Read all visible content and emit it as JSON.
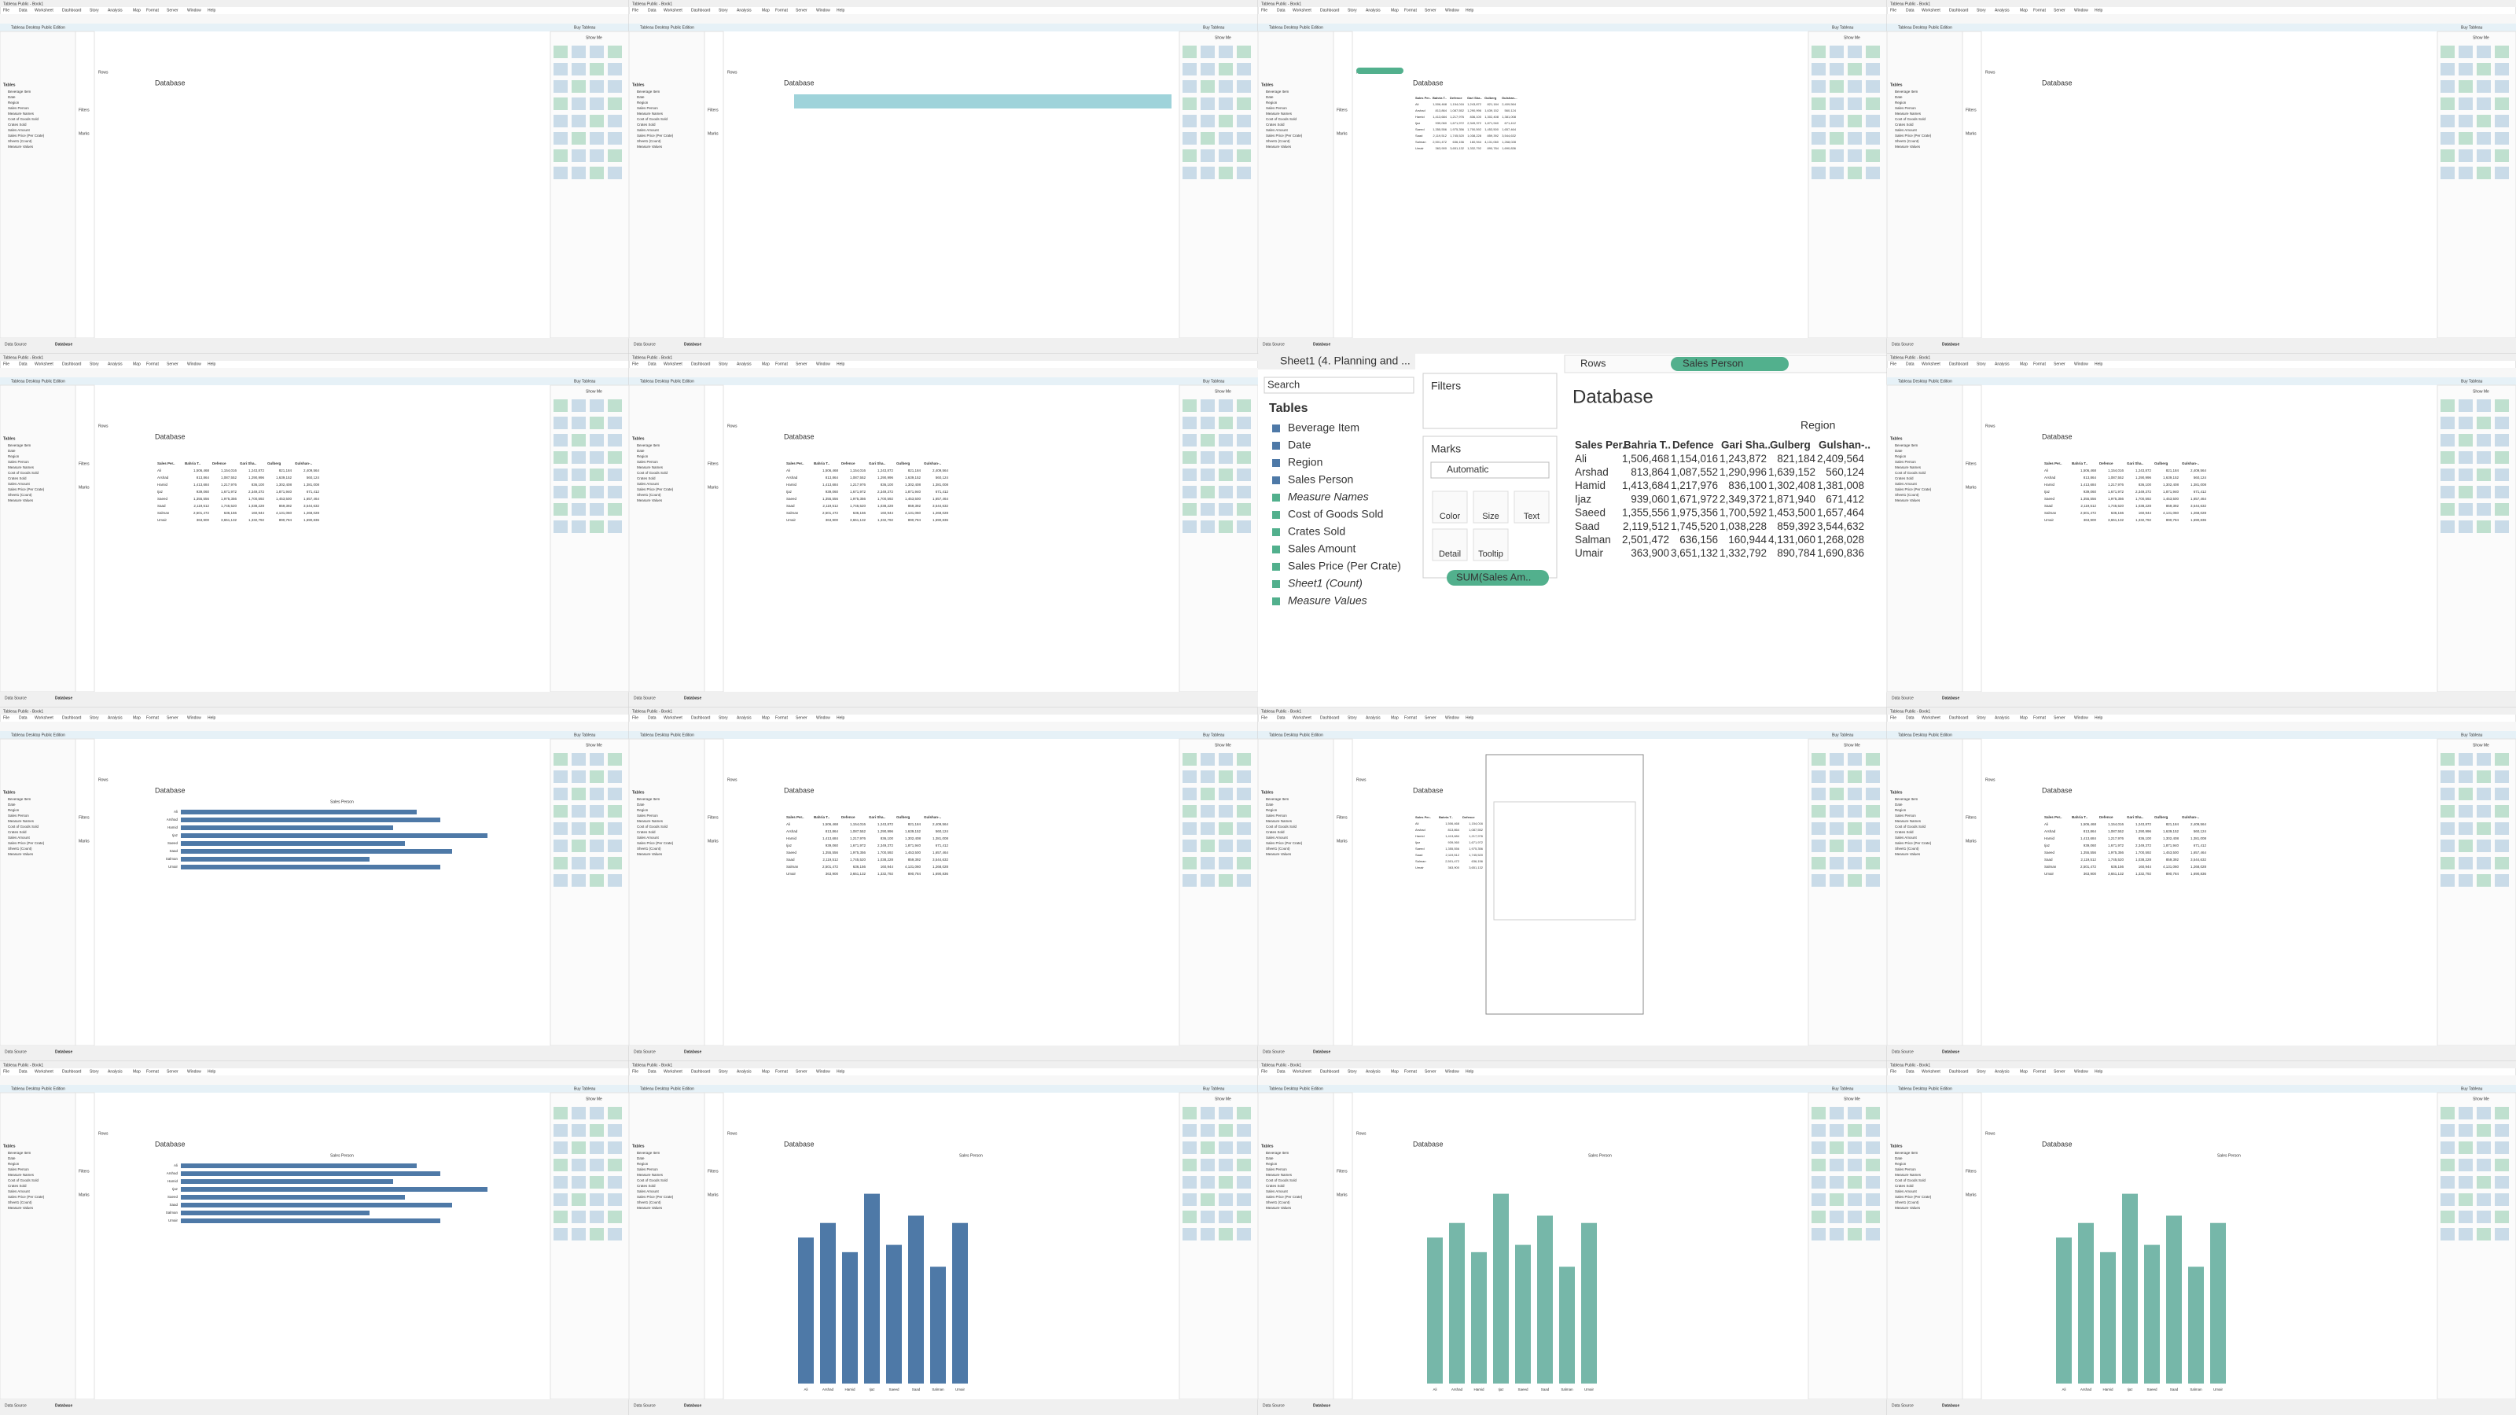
{
  "window": {
    "title": "Tableau Public - Book1",
    "menu": [
      "File",
      "Data",
      "Worksheet",
      "Dashboard",
      "Story",
      "Analysis",
      "Map",
      "Format",
      "Server",
      "Window",
      "Help"
    ],
    "banner": "Tableau Desktop Public Edition",
    "buy": "Buy Tableau",
    "show_me": "Show Me",
    "source": "Data Source",
    "sheet": "Database"
  },
  "zoom": {
    "sheet_tab": "Sheet1 (4. Planning and ...",
    "rows_label": "Rows",
    "rows_pill": "Sales Person",
    "search": "Search",
    "tables_title": "Tables",
    "tables": [
      "Beverage Item",
      "Date",
      "Region",
      "Sales Person",
      "Measure Names",
      "Cost of Goods Sold",
      "Crates Sold",
      "Sales Amount",
      "Sales Price (Per Crate)",
      "Sheet1 (Count)",
      "Measure Values"
    ],
    "filters": "Filters",
    "marks": "Marks",
    "mark_type": "Automatic",
    "mark_buttons": [
      "Color",
      "Size",
      "Text",
      "Detail",
      "Tooltip"
    ],
    "measure_pill": "SUM(Sales Am..",
    "sheet_title": "Database",
    "column_header": "Region",
    "table": {
      "columns": [
        "Sales Per..",
        "Bahria T..",
        "Defence",
        "Gari Sha..",
        "Gulberg",
        "Gulshan-.."
      ],
      "rows": [
        [
          "Ali",
          "1,506,468",
          "1,154,016",
          "1,243,872",
          "821,184",
          "2,409,564"
        ],
        [
          "Arshad",
          "813,864",
          "1,087,552",
          "1,290,996",
          "1,639,152",
          "560,124"
        ],
        [
          "Hamid",
          "1,413,684",
          "1,217,976",
          "836,100",
          "1,302,408",
          "1,381,008"
        ],
        [
          "Ijaz",
          "939,060",
          "1,671,972",
          "2,349,372",
          "1,871,940",
          "671,412"
        ],
        [
          "Saeed",
          "1,355,556",
          "1,975,356",
          "1,700,592",
          "1,453,500",
          "1,657,464"
        ],
        [
          "Saad",
          "2,119,512",
          "1,745,520",
          "1,038,228",
          "859,392",
          "3,544,632"
        ],
        [
          "Salman",
          "2,501,472",
          "636,156",
          "160,944",
          "4,131,060",
          "1,268,028"
        ],
        [
          "Umair",
          "363,900",
          "3,651,132",
          "1,332,792",
          "890,784",
          "1,690,836"
        ]
      ]
    }
  },
  "bar_chart": {
    "type": "bar",
    "title": "Sales Person",
    "categories": [
      "Ali",
      "Arshad",
      "Hamid",
      "Ijaz",
      "Saeed",
      "Saad",
      "Salman",
      "Umair"
    ],
    "values": [
      10,
      11,
      9,
      13,
      9.5,
      11.5,
      8,
      11
    ],
    "ylim": [
      0,
      14
    ],
    "colors": [
      "#4e79a7",
      "#76b7a9"
    ]
  }
}
